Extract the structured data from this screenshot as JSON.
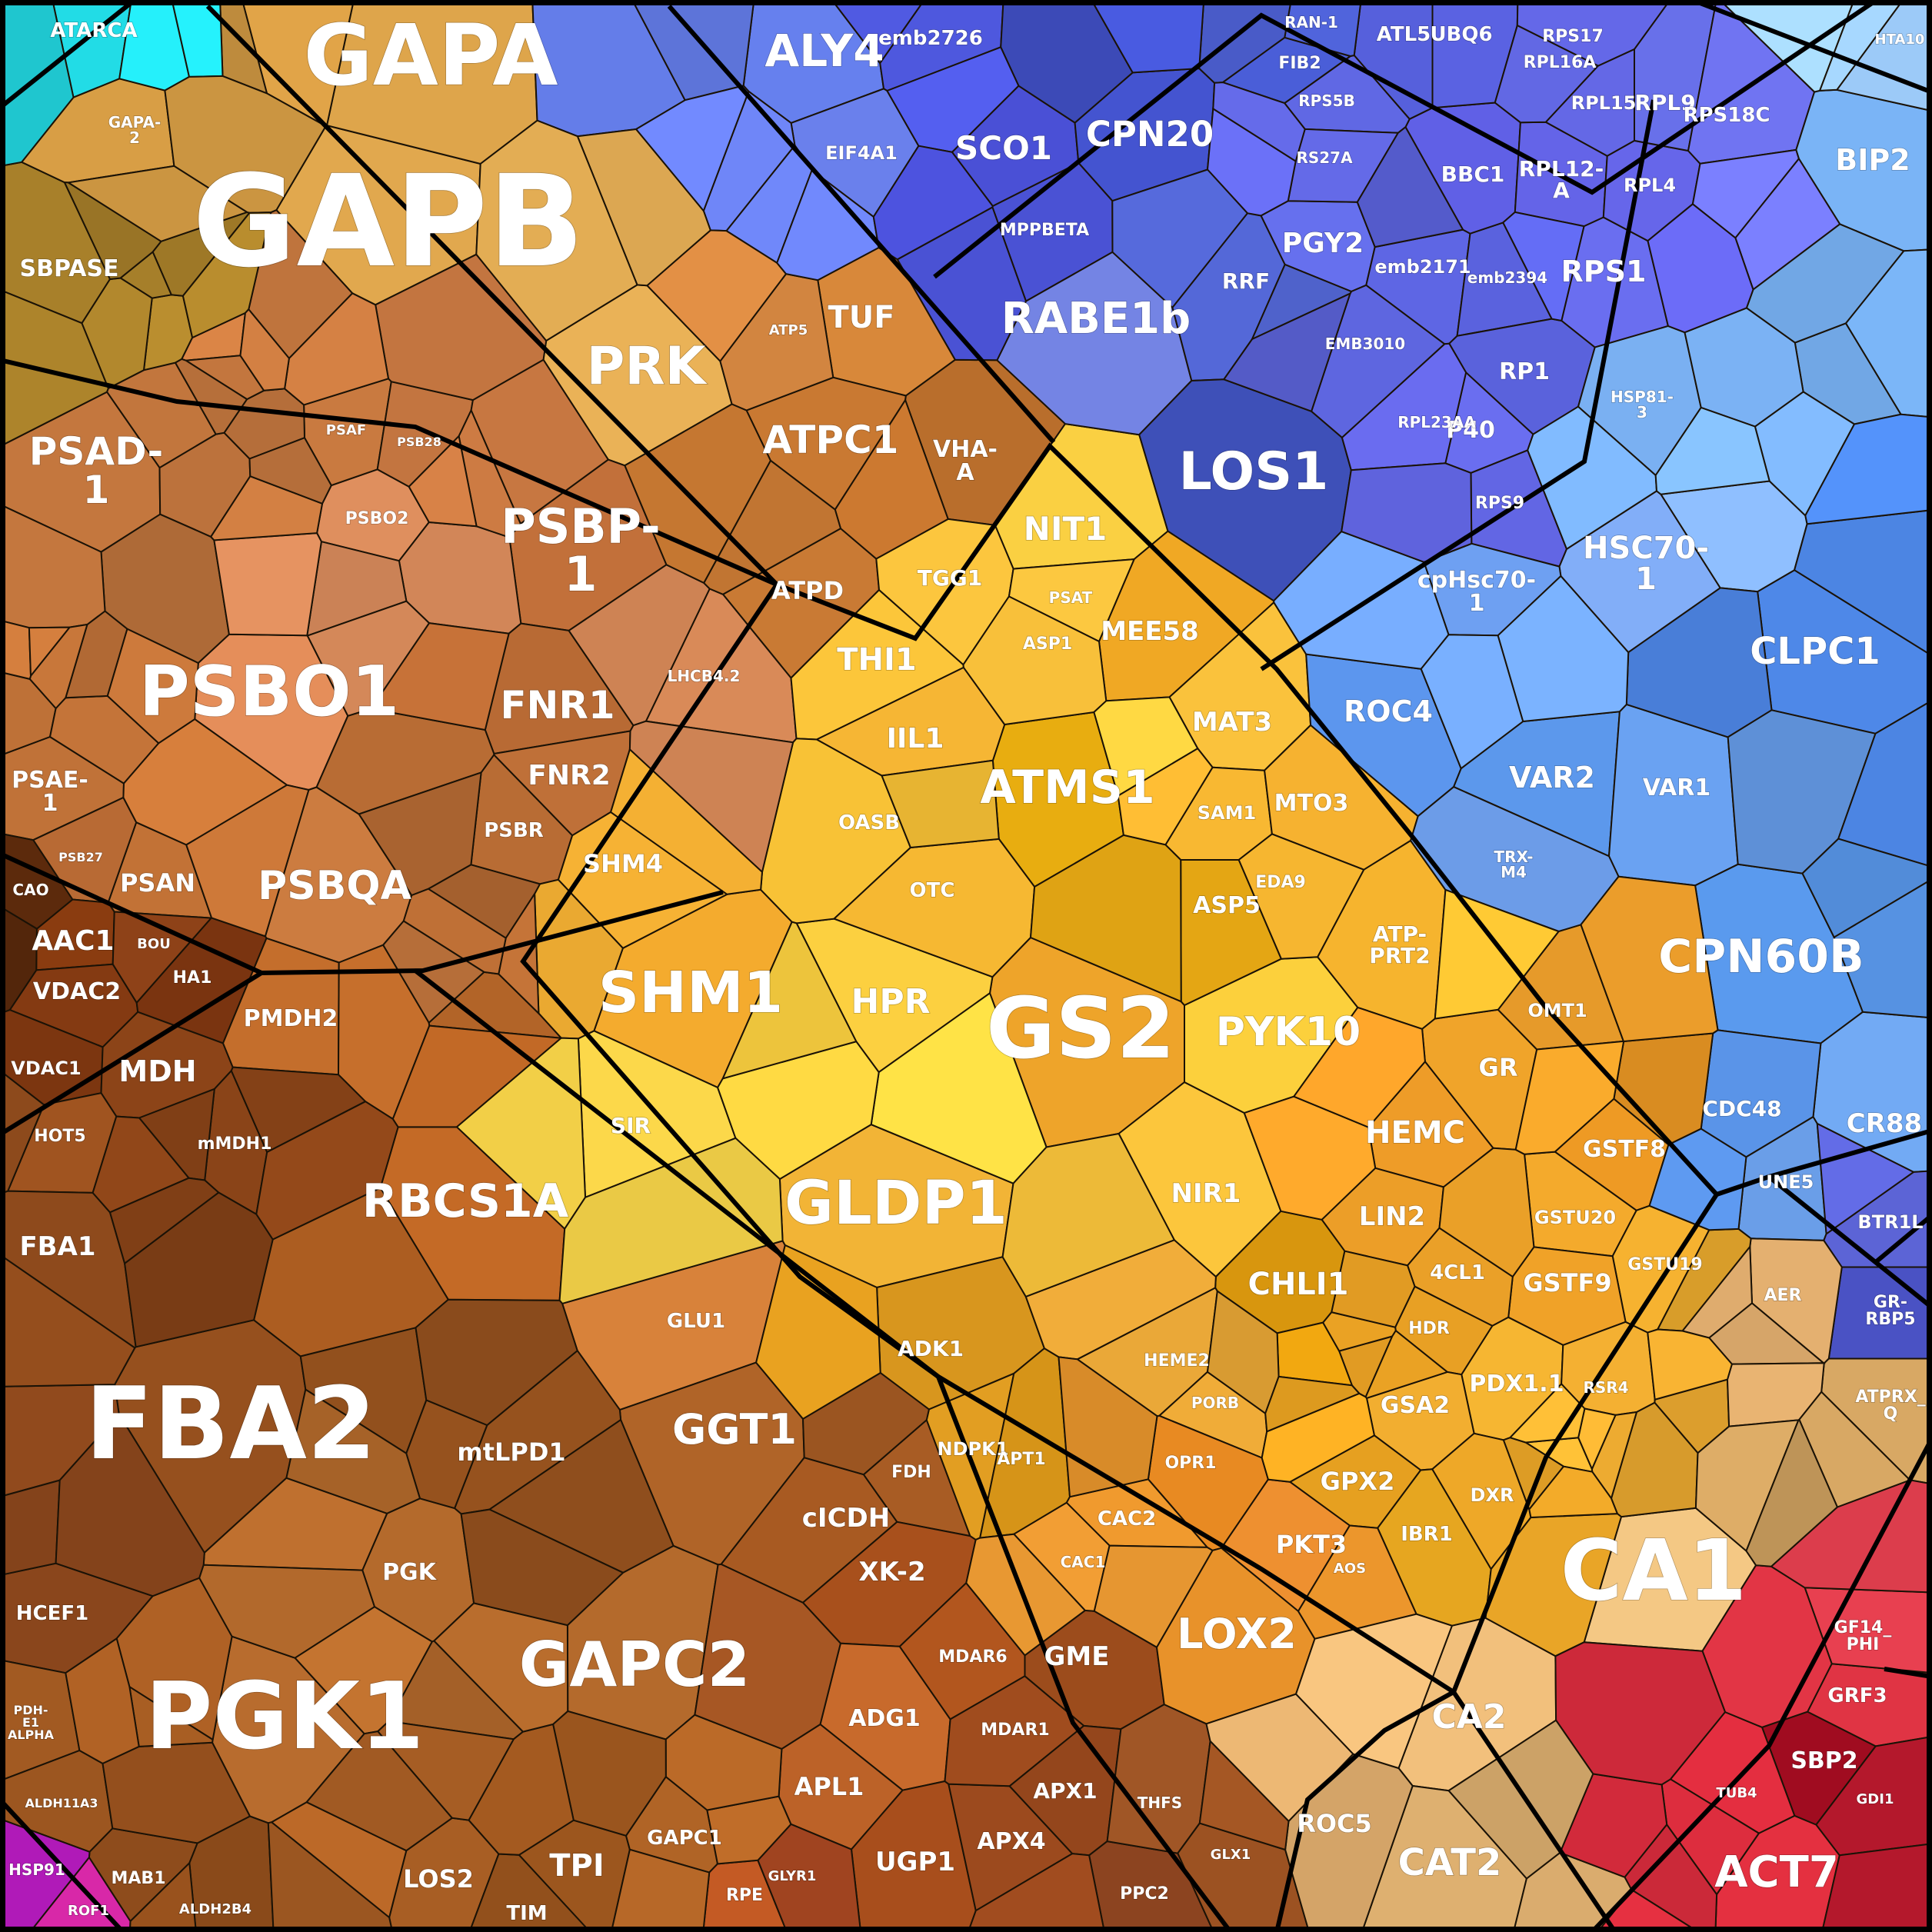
{
  "chart_data": {
    "type": "voronoi-treemap",
    "title": "",
    "groups": [
      {
        "name": "g-calvin-cycle",
        "color": "#dca24a"
      },
      {
        "name": "g-photosynthesis",
        "color": "#c4763c"
      },
      {
        "name": "g-glycolysis",
        "color": "#8e4a1c"
      },
      {
        "name": "g-amino-acid",
        "color": "#f2b832"
      },
      {
        "name": "g-translation",
        "color": "#5b62e0"
      },
      {
        "name": "g-chaperone",
        "color": "#74a8f2"
      },
      {
        "name": "g-carbonic",
        "color": "#eab872"
      },
      {
        "name": "g-cytoskeleton",
        "color": "#d8283c"
      },
      {
        "name": "g-cyan",
        "color": "#22e0e8"
      },
      {
        "name": "g-magenta",
        "color": "#b81ab8"
      }
    ],
    "cells": [
      {
        "label": "GAPB",
        "color": "#e1a84e"
      },
      {
        "label": "GAPA",
        "color": "#dea54b"
      },
      {
        "label": "PRK",
        "color": "#eab257"
      },
      {
        "label": "SBPASE",
        "color": "#a8802a"
      },
      {
        "label": "GAPA-\n2",
        "color": "#d89e45"
      },
      {
        "label": "TUF",
        "color": "#d8883a"
      },
      {
        "label": "ATPC1",
        "color": "#c97932"
      },
      {
        "label": "VHA-\nA",
        "color": "#b96e2c"
      },
      {
        "label": "ATPD",
        "color": "#c97a34"
      },
      {
        "label": "ATP5",
        "color": "#d28540"
      },
      {
        "label": "PSAD-\n1",
        "color": "#c4773e"
      },
      {
        "label": "PSBO1",
        "color": "#e58e5a"
      },
      {
        "label": "PSBP-\n1",
        "color": "#c2703a"
      },
      {
        "label": "FNR1",
        "color": "#b86a34"
      },
      {
        "label": "FNR2",
        "color": "#bf7038"
      },
      {
        "label": "PSBQA",
        "color": "#cc7c40"
      },
      {
        "label": "PSAN",
        "color": "#c27236"
      },
      {
        "label": "PSBR",
        "color": "#b86c34"
      },
      {
        "label": "LHCB4.2",
        "color": "#d98a58"
      },
      {
        "label": "PSBO2",
        "color": "#df8f5e"
      },
      {
        "label": "PSAE-\n1",
        "color": "#c07238"
      },
      {
        "label": "PSAF",
        "color": "#c97a40"
      },
      {
        "label": "PSB28",
        "color": "#c37540"
      },
      {
        "label": "PSB27",
        "color": "#b86a34"
      },
      {
        "label": "AAC1",
        "color": "#8a3c10"
      },
      {
        "label": "VDAC2",
        "color": "#843a12"
      },
      {
        "label": "VDAC1",
        "color": "#7c3610"
      },
      {
        "label": "HA1",
        "color": "#7a3410"
      },
      {
        "label": "BOU",
        "color": "#8e4218"
      },
      {
        "label": "CAO",
        "color": "#5c2a0c"
      },
      {
        "label": "MDH",
        "color": "#8c4418"
      },
      {
        "label": "PMDH2",
        "color": "#c46e2c"
      },
      {
        "label": "mMDH1",
        "color": "#8a4418"
      },
      {
        "label": "HOT5",
        "color": "#a05420"
      },
      {
        "label": "RBCS1A",
        "color": "#c46a26"
      },
      {
        "label": "FBA1",
        "color": "#8e4a1c"
      },
      {
        "label": "FBA2",
        "color": "#96501e"
      },
      {
        "label": "GLU1",
        "color": "#d8823a"
      },
      {
        "label": "GGT1",
        "color": "#b06428"
      },
      {
        "label": "mtLPD1",
        "color": "#96521e"
      },
      {
        "label": "PGK",
        "color": "#b46a2c"
      },
      {
        "label": "PGK1",
        "color": "#b86c2e"
      },
      {
        "label": "GAPC2",
        "color": "#b46a2c"
      },
      {
        "label": "HCEF1",
        "color": "#8a461c"
      },
      {
        "label": "PDH-\nE1\nALPHA",
        "color": "#a25a22"
      },
      {
        "label": "ALDH11A3",
        "color": "#9c5620"
      },
      {
        "label": "TPI",
        "color": "#9c561e"
      },
      {
        "label": "LOS2",
        "color": "#a85e24"
      },
      {
        "label": "GAPC1",
        "color": "#b06426"
      },
      {
        "label": "TIM",
        "color": "#92501c"
      },
      {
        "label": "MAB1",
        "color": "#8e4c1c"
      },
      {
        "label": "ALDH2B4",
        "color": "#8a4a1a"
      },
      {
        "label": "cICDH",
        "color": "#a85a22"
      },
      {
        "label": "FDH",
        "color": "#a85c24"
      },
      {
        "label": "XK-2",
        "color": "#a8501c"
      },
      {
        "label": "ADG1",
        "color": "#c86a2c"
      },
      {
        "label": "APL1",
        "color": "#bc6228"
      },
      {
        "label": "UGP1",
        "color": "#a84e1c"
      },
      {
        "label": "APX4",
        "color": "#9c4a1e"
      },
      {
        "label": "GME",
        "color": "#9c4c1c"
      },
      {
        "label": "MDAR6",
        "color": "#b2561e"
      },
      {
        "label": "MDAR1",
        "color": "#a04c1e"
      },
      {
        "label": "APX1",
        "color": "#94461c"
      },
      {
        "label": "PPC2",
        "color": "#8c4420"
      },
      {
        "label": "THFS",
        "color": "#a05626"
      },
      {
        "label": "GLX1",
        "color": "#9c5222"
      },
      {
        "label": "RPE",
        "color": "#c45a24"
      },
      {
        "label": "GLYR1",
        "color": "#a04420"
      },
      {
        "label": "SHM1",
        "color": "#f4ab2e"
      },
      {
        "label": "SHM4",
        "color": "#f6b234"
      },
      {
        "label": "GS2",
        "color": "#eea42a"
      },
      {
        "label": "ATMS1",
        "color": "#e8ad10"
      },
      {
        "label": "GLDP1",
        "color": "#f2b436"
      },
      {
        "label": "PYK10",
        "color": "#fcd03c"
      },
      {
        "label": "HPR",
        "color": "#fcd040"
      },
      {
        "label": "NIT1",
        "color": "#fad042"
      },
      {
        "label": "MEE58",
        "color": "#f0a824"
      },
      {
        "label": "THI1",
        "color": "#fcc63a"
      },
      {
        "label": "IIL1",
        "color": "#f6b634"
      },
      {
        "label": "OASB",
        "color": "#f8c236"
      },
      {
        "label": "OTC",
        "color": "#f6b832"
      },
      {
        "label": "MAT3",
        "color": "#fac23c"
      },
      {
        "label": "SAM1",
        "color": "#f8b832"
      },
      {
        "label": "MTO3",
        "color": "#f6b230"
      },
      {
        "label": "ASP5",
        "color": "#e4a614"
      },
      {
        "label": "EDA9",
        "color": "#f6b630"
      },
      {
        "label": "ATP-\nPRT2",
        "color": "#f6b42e"
      },
      {
        "label": "TGG1",
        "color": "#fcc63e"
      },
      {
        "label": "PSAT",
        "color": "#fcc840"
      },
      {
        "label": "ASP1",
        "color": "#f8c03a"
      },
      {
        "label": "NIR1",
        "color": "#fcc63c"
      },
      {
        "label": "SIR",
        "color": "#fcd84a"
      },
      {
        "label": "HEMC",
        "color": "#ee9c28"
      },
      {
        "label": "GR",
        "color": "#f0a42a"
      },
      {
        "label": "GSTF8",
        "color": "#ee9a24"
      },
      {
        "label": "GSTU20",
        "color": "#f4aa2c"
      },
      {
        "label": "GSTU19",
        "color": "#f6b230"
      },
      {
        "label": "GSTF9",
        "color": "#f0a228"
      },
      {
        "label": "LIN2",
        "color": "#ec9e28"
      },
      {
        "label": "4CL1",
        "color": "#eaa028"
      },
      {
        "label": "CHLI1",
        "color": "#d8960e"
      },
      {
        "label": "HDR",
        "color": "#e8a024"
      },
      {
        "label": "PDX1.1",
        "color": "#f6b632"
      },
      {
        "label": "RSR4",
        "color": "#f4b032"
      },
      {
        "label": "GSA2",
        "color": "#f2ae30"
      },
      {
        "label": "GPX2",
        "color": "#e6a020"
      },
      {
        "label": "IBR1",
        "color": "#e6a620"
      },
      {
        "label": "DXR",
        "color": "#eea828"
      },
      {
        "label": "OMT1",
        "color": "#e69a2a"
      },
      {
        "label": "HEME2",
        "color": "#eaa838"
      },
      {
        "label": "PORB",
        "color": "#f0ac38"
      },
      {
        "label": "ADK1",
        "color": "#d8961e"
      },
      {
        "label": "NDPK1",
        "color": "#e29e22"
      },
      {
        "label": "APT1",
        "color": "#d69418"
      },
      {
        "label": "OPR1",
        "color": "#e88a22"
      },
      {
        "label": "CAC2",
        "color": "#f09a2e"
      },
      {
        "label": "CAC1",
        "color": "#f29e34"
      },
      {
        "label": "PKT3",
        "color": "#ee9030"
      },
      {
        "label": "LOX2",
        "color": "#e8922a"
      },
      {
        "label": "AOS",
        "color": "#ec962c"
      },
      {
        "label": "ALY4",
        "color": "#6680ee"
      },
      {
        "label": "emb2726",
        "color": "#4e58de"
      },
      {
        "label": "SCO1",
        "color": "#4a50d6"
      },
      {
        "label": "CPN20",
        "color": "#4454d0"
      },
      {
        "label": "EIF4A1",
        "color": "#6a80ec"
      },
      {
        "label": "MPPBETA",
        "color": "#4a52d4"
      },
      {
        "label": "RABE1b",
        "color": "#7484e4"
      },
      {
        "label": "RRF",
        "color": "#5468d8"
      },
      {
        "label": "LOS1",
        "color": "#3e50b8"
      },
      {
        "label": "PGY2",
        "color": "#6670ee"
      },
      {
        "label": "emb2171",
        "color": "#5e66e4"
      },
      {
        "label": "emb2394",
        "color": "#5a62de"
      },
      {
        "label": "RPS1",
        "color": "#6a6ef0"
      },
      {
        "label": "BBC1",
        "color": "#6060e6"
      },
      {
        "label": "RPL12-\nA",
        "color": "#6464e8"
      },
      {
        "label": "RPL4",
        "color": "#6666ea"
      },
      {
        "label": "UBQ6",
        "color": "#5a62e2"
      },
      {
        "label": "ATL5",
        "color": "#5660dc"
      },
      {
        "label": "RPL15",
        "color": "#6468e6"
      },
      {
        "label": "RPL9",
        "color": "#6870ea"
      },
      {
        "label": "RPS18C",
        "color": "#7074f2"
      },
      {
        "label": "RPS17",
        "color": "#6468e8"
      },
      {
        "label": "RPL16A",
        "color": "#6268e4"
      },
      {
        "label": "RP1",
        "color": "#5a62dc"
      },
      {
        "label": "P40",
        "color": "#6a6ef0"
      },
      {
        "label": "RPS9",
        "color": "#6266e4"
      },
      {
        "label": "RPL23AA",
        "color": "#6a6cf0"
      },
      {
        "label": "EMB3010",
        "color": "#5e66e0"
      },
      {
        "label": "RPS5B",
        "color": "#6068e4"
      },
      {
        "label": "RS27A",
        "color": "#646ae8"
      },
      {
        "label": "FIB2",
        "color": "#4a5ed8"
      },
      {
        "label": "RAN-1",
        "color": "#5064dc"
      },
      {
        "label": "HSC70-\n1",
        "color": "#82aef8"
      },
      {
        "label": "cpHsc70-\n1",
        "color": "#6ea0f2"
      },
      {
        "label": "CLPC1",
        "color": "#4e88e8"
      },
      {
        "label": "ROC4",
        "color": "#5c96ee"
      },
      {
        "label": "VAR2",
        "color": "#5c98ec"
      },
      {
        "label": "VAR1",
        "color": "#6aa2f2"
      },
      {
        "label": "CPN60B",
        "color": "#5a9aee"
      },
      {
        "label": "CR88",
        "color": "#72aaf4"
      },
      {
        "label": "CDC48",
        "color": "#5a94e8"
      },
      {
        "label": "UNE5",
        "color": "#6a9ee8"
      },
      {
        "label": "BIP2",
        "color": "#7ab4f6"
      },
      {
        "label": "HTA10",
        "color": "#9ccaf8"
      },
      {
        "label": "HSP81-\n3",
        "color": "#7ab0f2"
      },
      {
        "label": "TRX-\nM4",
        "color": "#6c9ce8"
      },
      {
        "label": "BTR1L",
        "color": "#5c64d6"
      },
      {
        "label": "GR-\nRBP5",
        "color": "#4a52c4"
      },
      {
        "label": "CA1",
        "color": "#f4c884"
      },
      {
        "label": "CA2",
        "color": "#f2c07c"
      },
      {
        "label": "CAT2",
        "color": "#deb070"
      },
      {
        "label": "ROC5",
        "color": "#d4a468"
      },
      {
        "label": "ATPRX_\nQ",
        "color": "#d8a864"
      },
      {
        "label": "AER",
        "color": "#e4b070"
      },
      {
        "label": "ACT7",
        "color": "#e43040"
      },
      {
        "label": "SBP2",
        "color": "#a00c20"
      },
      {
        "label": "GRF3",
        "color": "#e03444"
      },
      {
        "label": "GF14_\nPHI",
        "color": "#e84050"
      },
      {
        "label": "TUB4",
        "color": "#e42e40"
      },
      {
        "label": "GDI1",
        "color": "#b4182c"
      },
      {
        "label": "ATARCA",
        "color": "#22dce6"
      },
      {
        "label": "HSP91",
        "color": "#b01ab8"
      },
      {
        "label": "ROF1",
        "color": "#d828a8"
      }
    ]
  }
}
